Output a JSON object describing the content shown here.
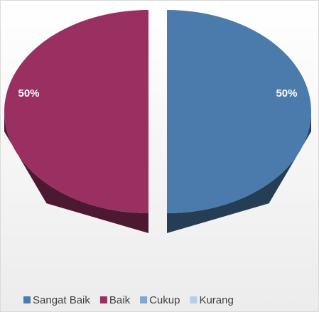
{
  "chart_data": {
    "type": "pie",
    "categories": [
      "Sangat Baik",
      "Baik",
      "Cukup",
      "Kurang"
    ],
    "values": [
      50,
      50,
      0,
      0
    ],
    "value_labels": [
      "50%",
      "50%",
      null,
      null
    ],
    "colors": [
      "#4a7bac",
      "#9a2f62",
      "#7fa6d6",
      "#b9cde6"
    ],
    "legend": "bottom"
  }
}
